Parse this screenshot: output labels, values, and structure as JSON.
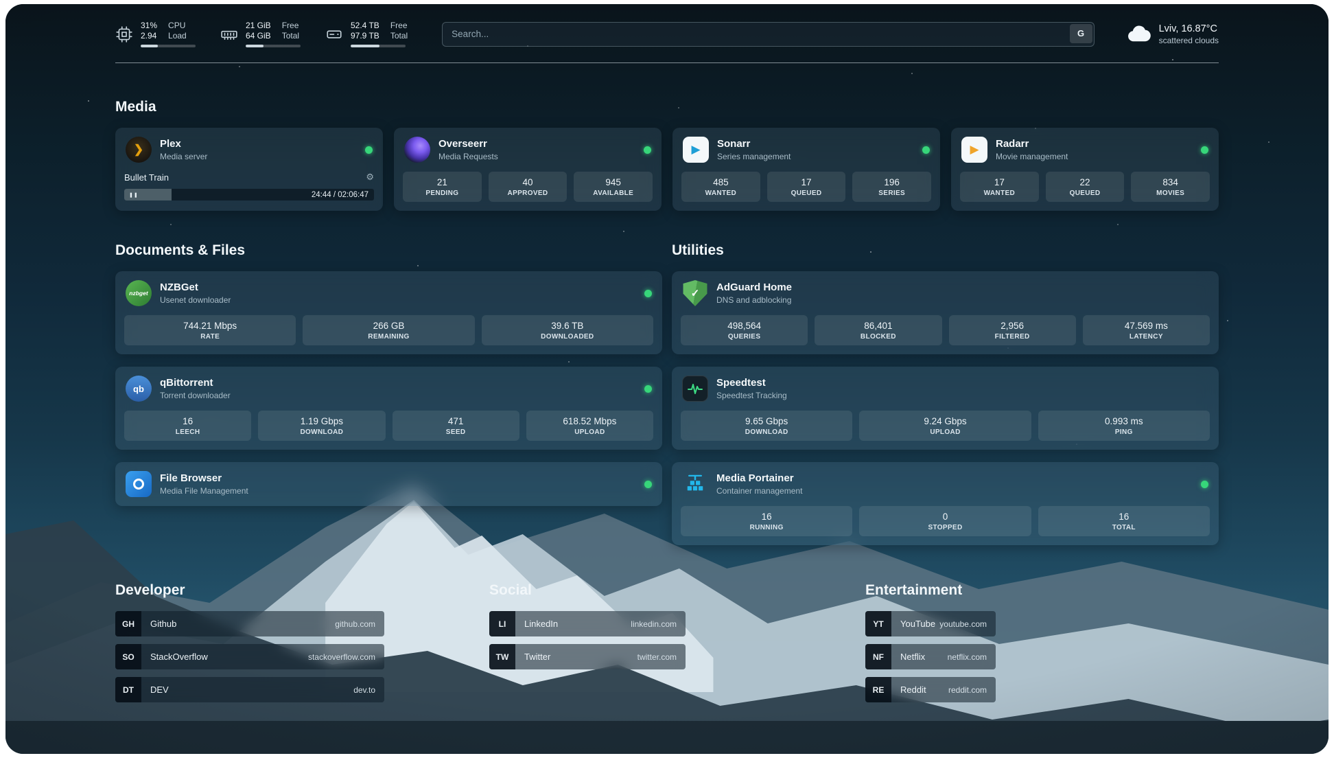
{
  "topbar": {
    "cpu": {
      "value_top": "31%",
      "value_bottom": "2.94",
      "label_top": "CPU",
      "label_bottom": "Load",
      "progress": 31
    },
    "ram": {
      "value_top": "21 GiB",
      "value_bottom": "64 GiB",
      "label_top": "Free",
      "label_bottom": "Total",
      "progress": 33
    },
    "disk": {
      "value_top": "52.4 TB",
      "value_bottom": "97.9 TB",
      "label_top": "Free",
      "label_bottom": "Total",
      "progress": 53
    },
    "search": {
      "placeholder": "Search...",
      "engine_label": "G"
    },
    "weather": {
      "location": "Lviv, 16.87°C",
      "condition": "scattered clouds"
    }
  },
  "sections": {
    "media_title": "Media",
    "documents_title": "Documents & Files",
    "utilities_title": "Utilities",
    "developer_title": "Developer",
    "social_title": "Social",
    "entertainment_title": "Entertainment"
  },
  "apps": {
    "plex": {
      "name": "Plex",
      "subtitle": "Media server",
      "now_playing": "Bullet Train",
      "elapsed": "24:44 / 02:06:47",
      "progress": 19
    },
    "overseerr": {
      "name": "Overseerr",
      "subtitle": "Media Requests",
      "stats": [
        {
          "value": "21",
          "label": "PENDING"
        },
        {
          "value": "40",
          "label": "APPROVED"
        },
        {
          "value": "945",
          "label": "AVAILABLE"
        }
      ]
    },
    "sonarr": {
      "name": "Sonarr",
      "subtitle": "Series management",
      "stats": [
        {
          "value": "485",
          "label": "WANTED"
        },
        {
          "value": "17",
          "label": "QUEUED"
        },
        {
          "value": "196",
          "label": "SERIES"
        }
      ]
    },
    "radarr": {
      "name": "Radarr",
      "subtitle": "Movie management",
      "stats": [
        {
          "value": "17",
          "label": "WANTED"
        },
        {
          "value": "22",
          "label": "QUEUED"
        },
        {
          "value": "834",
          "label": "MOVIES"
        }
      ]
    },
    "nzbget": {
      "name": "NZBGet",
      "subtitle": "Usenet downloader",
      "icon_text": "nzbget",
      "stats": [
        {
          "value": "744.21 Mbps",
          "label": "RATE"
        },
        {
          "value": "266 GB",
          "label": "REMAINING"
        },
        {
          "value": "39.6 TB",
          "label": "DOWNLOADED"
        }
      ]
    },
    "qbittorrent": {
      "name": "qBittorrent",
      "subtitle": "Torrent downloader",
      "icon_text": "qb",
      "stats": [
        {
          "value": "16",
          "label": "LEECH"
        },
        {
          "value": "1.19 Gbps",
          "label": "DOWNLOAD"
        },
        {
          "value": "471",
          "label": "SEED"
        },
        {
          "value": "618.52 Mbps",
          "label": "UPLOAD"
        }
      ]
    },
    "filebrowser": {
      "name": "File Browser",
      "subtitle": "Media File Management"
    },
    "adguard": {
      "name": "AdGuard Home",
      "subtitle": "DNS and adblocking",
      "stats": [
        {
          "value": "498,564",
          "label": "QUERIES"
        },
        {
          "value": "86,401",
          "label": "BLOCKED"
        },
        {
          "value": "2,956",
          "label": "FILTERED"
        },
        {
          "value": "47.569 ms",
          "label": "LATENCY"
        }
      ]
    },
    "speedtest": {
      "name": "Speedtest",
      "subtitle": "Speedtest Tracking",
      "stats": [
        {
          "value": "9.65 Gbps",
          "label": "DOWNLOAD"
        },
        {
          "value": "9.24 Gbps",
          "label": "UPLOAD"
        },
        {
          "value": "0.993 ms",
          "label": "PING"
        }
      ]
    },
    "portainer": {
      "name": "Media Portainer",
      "subtitle": "Container management",
      "stats": [
        {
          "value": "16",
          "label": "RUNNING"
        },
        {
          "value": "0",
          "label": "STOPPED"
        },
        {
          "value": "16",
          "label": "TOTAL"
        }
      ]
    }
  },
  "bookmarks": {
    "developer": [
      {
        "abbr": "GH",
        "name": "Github",
        "url": "github.com"
      },
      {
        "abbr": "SO",
        "name": "StackOverflow",
        "url": "stackoverflow.com"
      },
      {
        "abbr": "DT",
        "name": "DEV",
        "url": "dev.to"
      }
    ],
    "social": [
      {
        "abbr": "LI",
        "name": "LinkedIn",
        "url": "linkedin.com"
      },
      {
        "abbr": "TW",
        "name": "Twitter",
        "url": "twitter.com"
      }
    ],
    "entertainment": [
      {
        "abbr": "YT",
        "name": "YouTube",
        "url": "youtube.com"
      },
      {
        "abbr": "NF",
        "name": "Netflix",
        "url": "netflix.com"
      },
      {
        "abbr": "RE",
        "name": "Reddit",
        "url": "reddit.com"
      }
    ]
  },
  "icons": {
    "plex_chevron": "❯",
    "gear": "⚙",
    "pause": "❚❚",
    "check": "✓",
    "play": "▶"
  },
  "colors": {
    "status_online": "#37d67a",
    "plex_accent": "#e5a00d",
    "adguard_green": "#63bb64",
    "portainer_blue": "#22b8eb"
  }
}
